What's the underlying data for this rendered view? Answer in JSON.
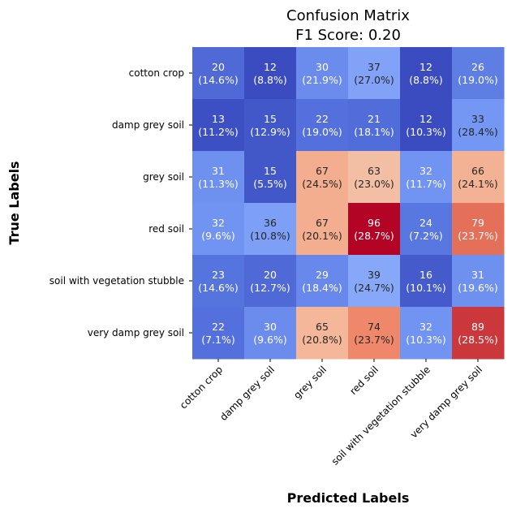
{
  "chart_data": {
    "type": "heatmap",
    "title_lines": [
      "Confusion Matrix",
      "F1 Score: 0.20"
    ],
    "xlabel": "Predicted Labels",
    "ylabel": "True Labels",
    "x_categories": [
      "cotton crop",
      "damp grey soil",
      "grey soil",
      "red soil",
      "soil with vegetation stubble",
      "very damp grey soil"
    ],
    "y_categories": [
      "cotton crop",
      "damp grey soil",
      "grey soil",
      "red soil",
      "soil with vegetation stubble",
      "very damp grey soil"
    ],
    "values": [
      [
        20,
        12,
        30,
        37,
        12,
        26
      ],
      [
        13,
        15,
        22,
        21,
        12,
        33
      ],
      [
        31,
        15,
        67,
        63,
        32,
        66
      ],
      [
        32,
        36,
        67,
        96,
        24,
        79
      ],
      [
        23,
        20,
        29,
        39,
        16,
        31
      ],
      [
        22,
        30,
        65,
        74,
        32,
        89
      ]
    ],
    "percent_labels": [
      [
        "(14.6%)",
        "(8.8%)",
        "(21.9%)",
        "(27.0%)",
        "(8.8%)",
        "(19.0%)"
      ],
      [
        "(11.2%)",
        "(12.9%)",
        "(19.0%)",
        "(18.1%)",
        "(10.3%)",
        "(28.4%)"
      ],
      [
        "(11.3%)",
        "(5.5%)",
        "(24.5%)",
        "(23.0%)",
        "(11.7%)",
        "(24.1%)"
      ],
      [
        "(9.6%)",
        "(10.8%)",
        "(20.1%)",
        "(28.7%)",
        "(7.2%)",
        "(23.7%)"
      ],
      [
        "(14.6%)",
        "(12.7%)",
        "(18.4%)",
        "(24.7%)",
        "(10.1%)",
        "(19.6%)"
      ],
      [
        "(7.1%)",
        "(9.6%)",
        "(20.8%)",
        "(23.7%)",
        "(10.3%)",
        "(28.5%)"
      ]
    ],
    "colormap": "coolwarm",
    "vmin": 12,
    "vmax": 96,
    "colorbar": false
  }
}
